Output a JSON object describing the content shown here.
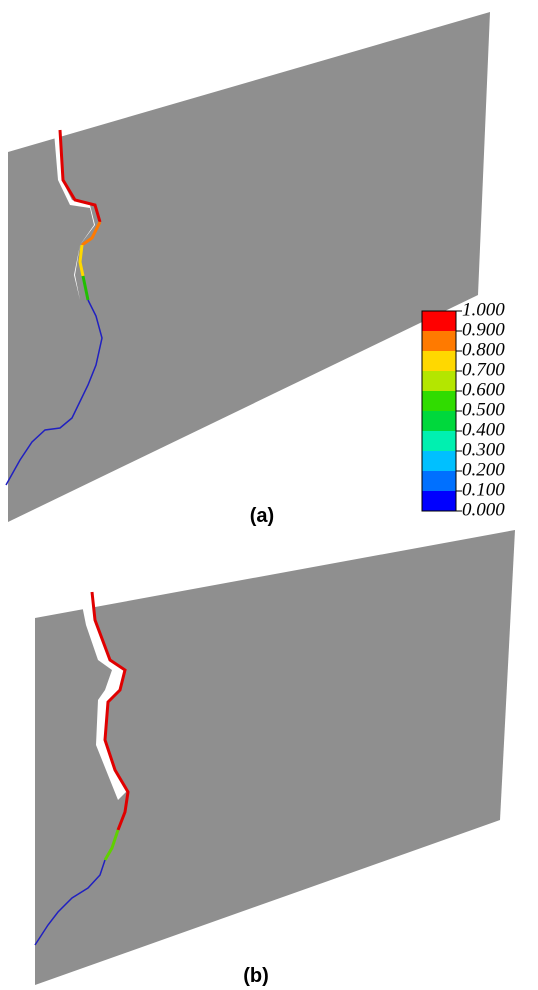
{
  "panels": [
    {
      "label": "(a)"
    },
    {
      "label": "(b)"
    }
  ],
  "colorbar": {
    "ticks": [
      {
        "value": 1,
        "label": "1.000"
      },
      {
        "value": 0.9,
        "label": "0.900"
      },
      {
        "value": 0.8,
        "label": "0.800"
      },
      {
        "value": 0.7,
        "label": "0.700"
      },
      {
        "value": 0.6,
        "label": "0.600"
      },
      {
        "value": 0.5,
        "label": "0.500"
      },
      {
        "value": 0.4,
        "label": "0.400"
      },
      {
        "value": 0.3,
        "label": "0.300"
      },
      {
        "value": 0.2,
        "label": "0.200"
      },
      {
        "value": 0.1,
        "label": "0.100"
      },
      {
        "value": 0,
        "label": "0.000"
      }
    ],
    "colors": [
      "#ff0000",
      "#ff7a00",
      "#ffd800",
      "#b4e600",
      "#30dc00",
      "#00d83c",
      "#00f0b0",
      "#00c0ff",
      "#0070ff",
      "#0000ff"
    ]
  }
}
